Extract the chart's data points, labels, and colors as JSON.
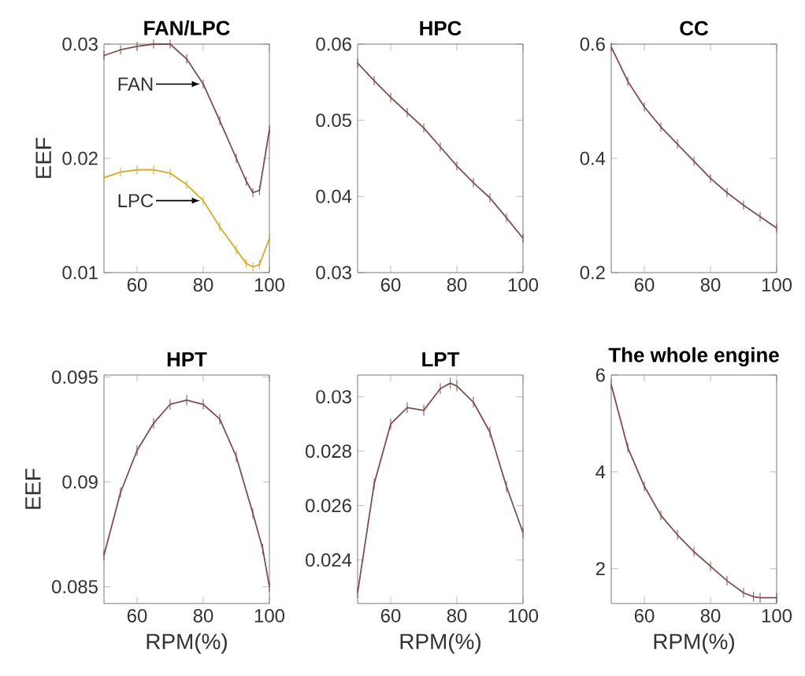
{
  "chart_data": [
    {
      "type": "line",
      "title": "FAN/LPC",
      "ylabel": "EEF",
      "x": [
        50,
        55,
        60,
        65,
        70,
        75,
        80,
        85,
        90,
        93,
        95,
        97,
        100
      ],
      "xlim": [
        50,
        100
      ],
      "xticks": [
        60,
        80,
        100
      ],
      "ylim": [
        0.01,
        0.03
      ],
      "yticks": [
        0.01,
        0.02,
        0.03
      ],
      "series": [
        {
          "name": "FAN",
          "color": "#7d4f52",
          "values": [
            0.029,
            0.0295,
            0.0298,
            0.03,
            0.03,
            0.0287,
            0.0265,
            0.0233,
            0.02,
            0.018,
            0.017,
            0.0172,
            0.0225
          ],
          "errors": [
            0.0004,
            0.0004,
            0.0004,
            0.0004,
            0.0004,
            0.0004,
            0.0004,
            0.0004,
            0.0004,
            0.0004,
            0.0004,
            0.0004,
            0.0004
          ]
        },
        {
          "name": "LPC",
          "color": "#d4aa2c",
          "values": [
            0.0183,
            0.0188,
            0.019,
            0.019,
            0.0187,
            0.0177,
            0.0163,
            0.014,
            0.012,
            0.0108,
            0.0105,
            0.0107,
            0.013
          ],
          "errors": [
            0.0004,
            0.0004,
            0.0004,
            0.0004,
            0.0004,
            0.0004,
            0.0004,
            0.0004,
            0.0004,
            0.0004,
            0.0004,
            0.0004,
            0.0004
          ]
        }
      ]
    },
    {
      "type": "line",
      "title": "HPC",
      "x": [
        50,
        55,
        60,
        65,
        70,
        75,
        80,
        85,
        90,
        95,
        100
      ],
      "xlim": [
        50,
        100
      ],
      "xticks": [
        60,
        80,
        100
      ],
      "ylim": [
        0.03,
        0.06
      ],
      "yticks": [
        0.03,
        0.04,
        0.05,
        0.06
      ],
      "series": [
        {
          "color": "#7d4f52",
          "values": [
            0.0575,
            0.0552,
            0.053,
            0.051,
            0.049,
            0.0465,
            0.044,
            0.0418,
            0.0398,
            0.0372,
            0.0345
          ],
          "errors": [
            0.0006,
            0.0006,
            0.0006,
            0.0006,
            0.0006,
            0.0006,
            0.0006,
            0.0006,
            0.0006,
            0.0006,
            0.0006
          ]
        }
      ]
    },
    {
      "type": "line",
      "title": "CC",
      "x": [
        50,
        55,
        60,
        65,
        70,
        75,
        80,
        85,
        90,
        95,
        100
      ],
      "xlim": [
        50,
        100
      ],
      "xticks": [
        60,
        80,
        100
      ],
      "ylim": [
        0.2,
        0.6
      ],
      "yticks": [
        0.2,
        0.4,
        0.6
      ],
      "series": [
        {
          "color": "#7d4f52",
          "values": [
            0.595,
            0.535,
            0.49,
            0.455,
            0.425,
            0.395,
            0.365,
            0.34,
            0.318,
            0.298,
            0.278
          ],
          "errors": [
            0.008,
            0.008,
            0.008,
            0.008,
            0.008,
            0.008,
            0.008,
            0.008,
            0.008,
            0.008,
            0.008
          ]
        }
      ]
    },
    {
      "type": "line",
      "title": "HPT",
      "ylabel": "EEF",
      "xlabel": "RPM(%)",
      "x": [
        50,
        55,
        60,
        65,
        70,
        75,
        80,
        85,
        90,
        95,
        98,
        100
      ],
      "xlim": [
        50,
        100
      ],
      "xticks": [
        60,
        80,
        100
      ],
      "ylim": [
        0.0842,
        0.0951
      ],
      "yticks": [
        0.085,
        0.09,
        0.095
      ],
      "series": [
        {
          "color": "#7d4f52",
          "values": [
            0.0865,
            0.0895,
            0.0915,
            0.0928,
            0.0937,
            0.0939,
            0.0937,
            0.093,
            0.0912,
            0.0885,
            0.0868,
            0.085
          ],
          "errors": [
            0.00025,
            0.00025,
            0.00025,
            0.00025,
            0.00025,
            0.00025,
            0.00025,
            0.00025,
            0.00025,
            0.00025,
            0.00025,
            0.00025
          ]
        }
      ]
    },
    {
      "type": "line",
      "title": "LPT",
      "xlabel": "RPM(%)",
      "x": [
        50,
        55,
        60,
        65,
        70,
        75,
        78,
        80,
        85,
        90,
        95,
        100
      ],
      "xlim": [
        50,
        100
      ],
      "xticks": [
        60,
        80,
        100
      ],
      "ylim": [
        0.0224,
        0.0308
      ],
      "yticks": [
        0.024,
        0.026,
        0.028,
        0.03
      ],
      "series": [
        {
          "color": "#7d4f52",
          "values": [
            0.0228,
            0.0268,
            0.029,
            0.0296,
            0.0295,
            0.0303,
            0.0305,
            0.0304,
            0.0298,
            0.0287,
            0.0267,
            0.025
          ],
          "errors": [
            0.0002,
            0.0002,
            0.0002,
            0.0002,
            0.0002,
            0.0002,
            0.0002,
            0.0002,
            0.0002,
            0.0002,
            0.0002,
            0.0002
          ]
        }
      ]
    },
    {
      "type": "line",
      "title": "The whole engine",
      "xlabel": "RPM(%)",
      "x": [
        50,
        55,
        60,
        65,
        70,
        75,
        80,
        85,
        90,
        93,
        95,
        100
      ],
      "xlim": [
        50,
        100
      ],
      "xticks": [
        60,
        80,
        100
      ],
      "ylim": [
        1.28,
        6
      ],
      "yticks": [
        2,
        4,
        6
      ],
      "series": [
        {
          "color": "#7d4f52",
          "values": [
            5.8,
            4.5,
            3.7,
            3.1,
            2.7,
            2.35,
            2.05,
            1.75,
            1.5,
            1.42,
            1.4,
            1.4
          ],
          "errors": [
            0.1,
            0.1,
            0.1,
            0.1,
            0.1,
            0.1,
            0.1,
            0.1,
            0.1,
            0.1,
            0.1,
            0.1
          ]
        }
      ]
    }
  ]
}
